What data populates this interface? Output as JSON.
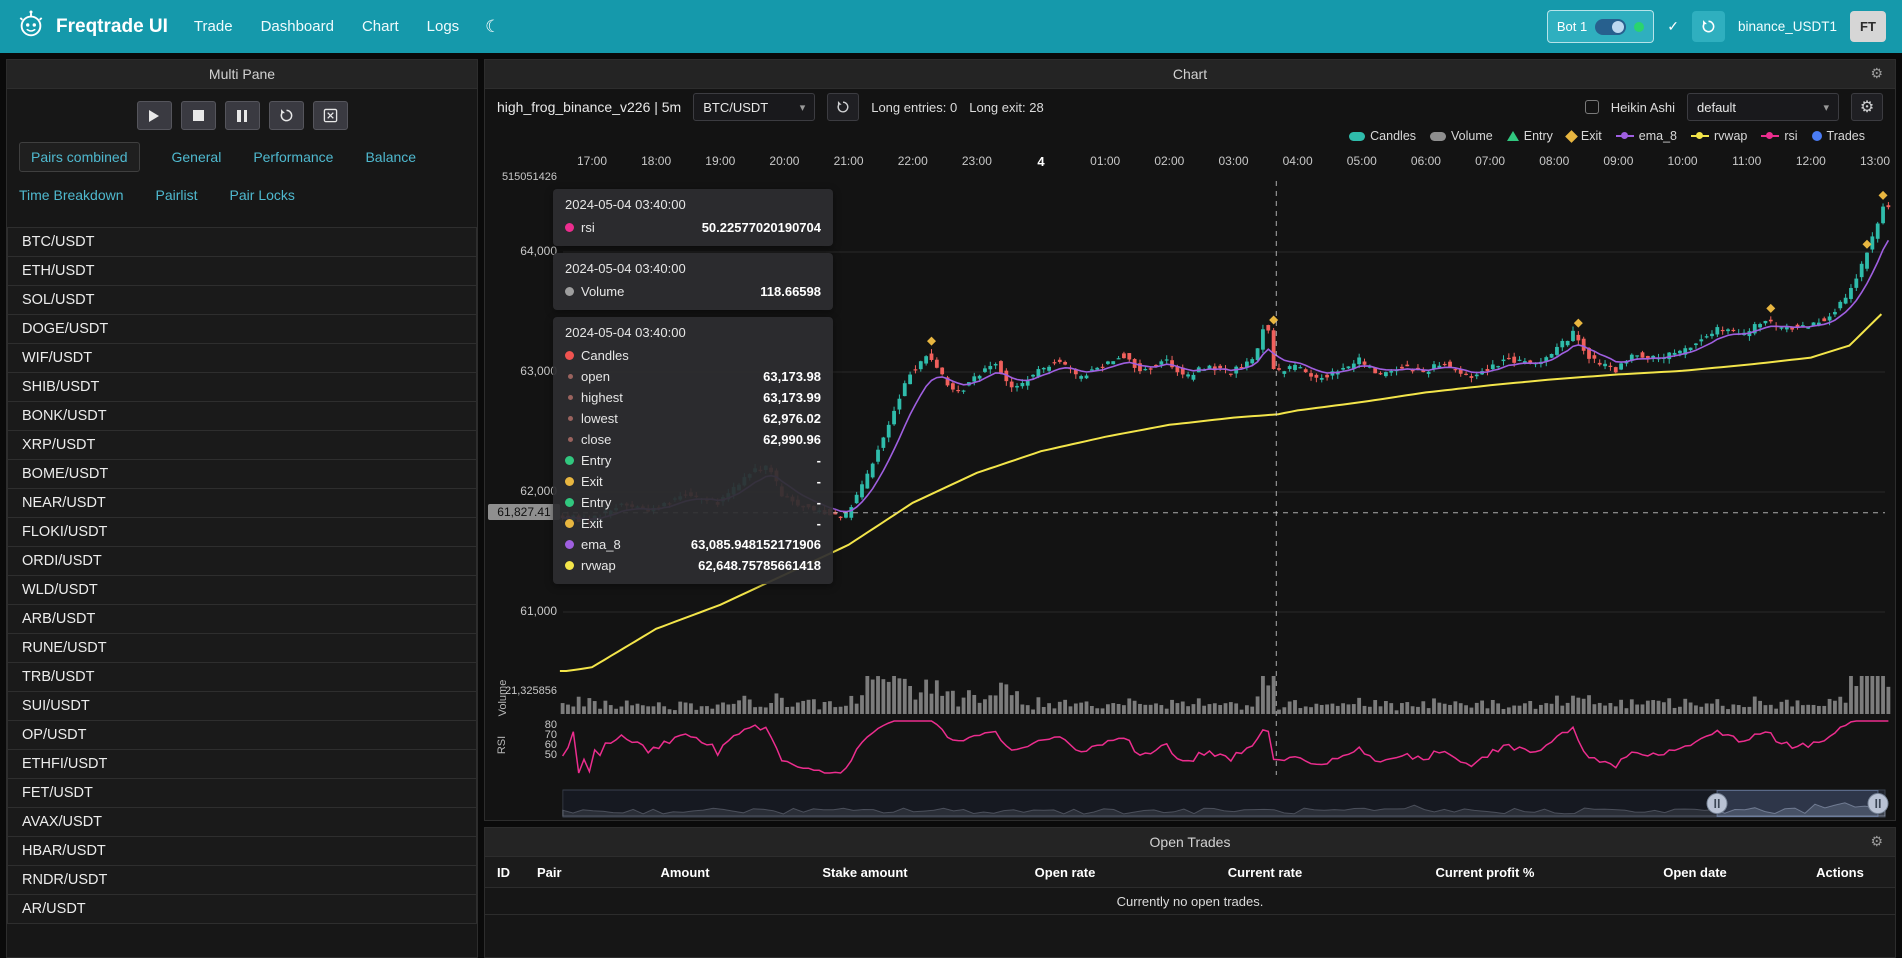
{
  "colors": {
    "navbar": "#1599ab",
    "accent": "#4fb9cf",
    "up": "#2fbcab",
    "down": "#f0605c",
    "ema_8": "#9f5fe0",
    "rvwap": "#f3e54a",
    "rsi": "#ec2d8e",
    "volume": "#8f8f8f",
    "entry": "#31c77f",
    "exit": "#e8b640",
    "trades": "#4a7cf5",
    "online": "#2ad46e"
  },
  "navbar": {
    "brand": "Freqtrade UI",
    "links": [
      "Trade",
      "Dashboard",
      "Chart",
      "Logs"
    ],
    "bot_label": "Bot 1",
    "exchange_label": "binance_USDT1",
    "avatar_label": "FT"
  },
  "left_panel": {
    "title": "Multi Pane",
    "tabs": [
      "Pairs combined",
      "General",
      "Performance",
      "Balance",
      "Time Breakdown",
      "Pairlist",
      "Pair Locks"
    ],
    "active_tab": "Pairs combined",
    "pairs": [
      "BTC/USDT",
      "ETH/USDT",
      "SOL/USDT",
      "DOGE/USDT",
      "WIF/USDT",
      "SHIB/USDT",
      "BONK/USDT",
      "XRP/USDT",
      "BOME/USDT",
      "NEAR/USDT",
      "FLOKI/USDT",
      "ORDI/USDT",
      "WLD/USDT",
      "ARB/USDT",
      "RUNE/USDT",
      "TRB/USDT",
      "SUI/USDT",
      "OP/USDT",
      "ETHFI/USDT",
      "FET/USDT",
      "AVAX/USDT",
      "HBAR/USDT",
      "RNDR/USDT",
      "AR/USDT"
    ]
  },
  "chart": {
    "panel_title": "Chart",
    "strategy_label": "high_frog_binance_v226 | 5m",
    "pair_value": "BTC/USDT",
    "stats": [
      "Long entries: 0",
      "Long exit: 28"
    ],
    "heikin_label": "Heikin Ashi",
    "plot_config_value": "default",
    "legend": [
      {
        "label": "Candles",
        "shape": "pill",
        "color": "#2fbcab"
      },
      {
        "label": "Volume",
        "shape": "pill",
        "color": "#8f8f8f"
      },
      {
        "label": "Entry",
        "shape": "triangle",
        "color": "#31c77f"
      },
      {
        "label": "Exit",
        "shape": "diamond",
        "color": "#e8b640"
      },
      {
        "label": "ema_8",
        "shape": "line",
        "color": "#9f5fe0"
      },
      {
        "label": "rvwap",
        "shape": "line",
        "color": "#f3e54a"
      },
      {
        "label": "rsi",
        "shape": "line",
        "color": "#ec2d8e"
      },
      {
        "label": "Trades",
        "shape": "circle",
        "color": "#4a7cf5"
      }
    ]
  },
  "axes": {
    "top_left_label": "515051426",
    "price_labels": [
      "64,000",
      "63,000",
      "62,000",
      "61,000"
    ],
    "volume_top_label": "21,325856",
    "volume_title": "Volume",
    "rsi_title": "RSI",
    "rsi_labels": [
      "80",
      "70",
      "60",
      "50"
    ],
    "time_labels": [
      "17:00",
      "18:00",
      "19:00",
      "20:00",
      "21:00",
      "22:00",
      "23:00",
      "4",
      "01:00",
      "02:00",
      "03:00",
      "04:00",
      "05:00",
      "06:00",
      "07:00",
      "08:00",
      "09:00",
      "10:00",
      "11:00",
      "12:00",
      "13:00"
    ],
    "crosshair_price_label": "61,827.41"
  },
  "tooltips": [
    {
      "time": "2024-05-04 03:40:00",
      "rows": [
        {
          "dot": "#ec2d8e",
          "label": "rsi",
          "value": "50.22577020190704"
        }
      ]
    },
    {
      "time": "2024-05-04 03:40:00",
      "rows": [
        {
          "dot": "#9e9e9e",
          "label": "Volume",
          "value": "118.66598"
        }
      ]
    },
    {
      "time": "2024-05-04 03:40:00",
      "rows": [
        {
          "dot": "#ef5350",
          "label": "Candles",
          "value": ""
        },
        {
          "dot": "#9a635e",
          "label": "open",
          "value": "63,173.98",
          "small": true
        },
        {
          "dot": "#9a635e",
          "label": "highest",
          "value": "63,173.99",
          "small": true
        },
        {
          "dot": "#9a635e",
          "label": "lowest",
          "value": "62,976.02",
          "small": true
        },
        {
          "dot": "#9a635e",
          "label": "close",
          "value": "62,990.96",
          "small": true
        },
        {
          "dot": "#31c77f",
          "label": "Entry",
          "value": "-"
        },
        {
          "dot": "#e8b640",
          "label": "Exit",
          "value": "-"
        },
        {
          "dot": "#31c77f",
          "label": "Entry",
          "value": "-"
        },
        {
          "dot": "#e8b640",
          "label": "Exit",
          "value": "-"
        },
        {
          "dot": "#9f5fe0",
          "label": "ema_8",
          "value": "63,085.948152171906"
        },
        {
          "dot": "#f3e54a",
          "label": "rvwap",
          "value": "62,648.75785661418"
        }
      ]
    }
  ],
  "open_trades": {
    "title": "Open Trades",
    "columns": [
      "ID",
      "Pair",
      "Amount",
      "Stake amount",
      "Open rate",
      "Current rate",
      "Current profit %",
      "Open date",
      "Actions"
    ],
    "empty_text": "Currently no open trades."
  },
  "chart_data": {
    "type": "candlestick",
    "pair": "BTC/USDT",
    "timeframe": "5m",
    "price_axis": {
      "top_value": 64592,
      "bottom_value": 60500,
      "gridline_values": [
        64000,
        63000,
        62000,
        61000
      ]
    },
    "rsi_gridline_values": [
      80,
      70,
      60,
      50
    ],
    "start_hour_offset": -0.5,
    "end_hour_offset": 20.17,
    "candle_minutes": 5,
    "price_anchor_points": [
      [
        -0.5,
        61800
      ],
      [
        0,
        61760
      ],
      [
        0.5,
        61900
      ],
      [
        1,
        61850
      ],
      [
        1.5,
        62000
      ],
      [
        2,
        61900
      ],
      [
        2.5,
        62160
      ],
      [
        2.8,
        62220
      ],
      [
        3,
        61960
      ],
      [
        3.5,
        61850
      ],
      [
        4,
        61800
      ],
      [
        4.3,
        62100
      ],
      [
        4.7,
        62600
      ],
      [
        5,
        63000
      ],
      [
        5.25,
        63140
      ],
      [
        5.5,
        62980
      ],
      [
        5.7,
        62800
      ],
      [
        6,
        62950
      ],
      [
        6.3,
        63100
      ],
      [
        6.6,
        62850
      ],
      [
        7,
        63000
      ],
      [
        7.3,
        63120
      ],
      [
        7.6,
        62950
      ],
      [
        8,
        63060
      ],
      [
        8.3,
        63150
      ],
      [
        8.6,
        63000
      ],
      [
        9,
        63100
      ],
      [
        9.3,
        62950
      ],
      [
        9.6,
        63050
      ],
      [
        10,
        63000
      ],
      [
        10.3,
        63080
      ],
      [
        10.45,
        63200
      ],
      [
        10.55,
        63560
      ],
      [
        10.62,
        63120
      ],
      [
        10.7,
        62990
      ],
      [
        11,
        63060
      ],
      [
        11.3,
        62950
      ],
      [
        11.7,
        63010
      ],
      [
        12,
        63100
      ],
      [
        12.3,
        62980
      ],
      [
        12.7,
        63050
      ],
      [
        13,
        63000
      ],
      [
        13.3,
        63090
      ],
      [
        13.7,
        62950
      ],
      [
        14,
        63030
      ],
      [
        14.3,
        63110
      ],
      [
        14.7,
        63060
      ],
      [
        15,
        63160
      ],
      [
        15.35,
        63330
      ],
      [
        15.6,
        63110
      ],
      [
        16,
        63010
      ],
      [
        16.3,
        63160
      ],
      [
        16.6,
        63110
      ],
      [
        17,
        63160
      ],
      [
        17.3,
        63260
      ],
      [
        17.6,
        63360
      ],
      [
        18,
        63310
      ],
      [
        18.3,
        63430
      ],
      [
        18.6,
        63360
      ],
      [
        19,
        63390
      ],
      [
        19.3,
        63460
      ],
      [
        19.6,
        63610
      ],
      [
        19.85,
        63900
      ],
      [
        20,
        64120
      ],
      [
        20.1,
        64260
      ],
      [
        20.17,
        64380
      ]
    ],
    "rvwap_anchor_points": [
      [
        -0.5,
        60500
      ],
      [
        0,
        60540
      ],
      [
        1,
        60860
      ],
      [
        2,
        61060
      ],
      [
        3,
        61310
      ],
      [
        4,
        61560
      ],
      [
        5,
        61910
      ],
      [
        6,
        62160
      ],
      [
        7,
        62340
      ],
      [
        8,
        62460
      ],
      [
        9,
        62560
      ],
      [
        10,
        62620
      ],
      [
        10.7,
        62649
      ],
      [
        11,
        62680
      ],
      [
        12,
        62750
      ],
      [
        13,
        62830
      ],
      [
        14,
        62890
      ],
      [
        15,
        62940
      ],
      [
        16,
        62980
      ],
      [
        17,
        63010
      ],
      [
        18,
        63060
      ],
      [
        19,
        63120
      ],
      [
        19.6,
        63220
      ],
      [
        20.17,
        63520
      ]
    ],
    "exit_marker_hours": [
      5.25,
      10.55,
      15.35,
      18.3,
      19.85,
      20.1
    ],
    "crosshair": {
      "hour_offset": 10.667,
      "price": 61827.41
    },
    "colors": {
      "up": "#2fbcab",
      "down": "#f0605c",
      "ema_8": "#9f5fe0",
      "rvwap": "#f3e54a",
      "rsi": "#ec2d8e",
      "volume": "#8f8f8f",
      "exit": "#e8b640"
    }
  }
}
